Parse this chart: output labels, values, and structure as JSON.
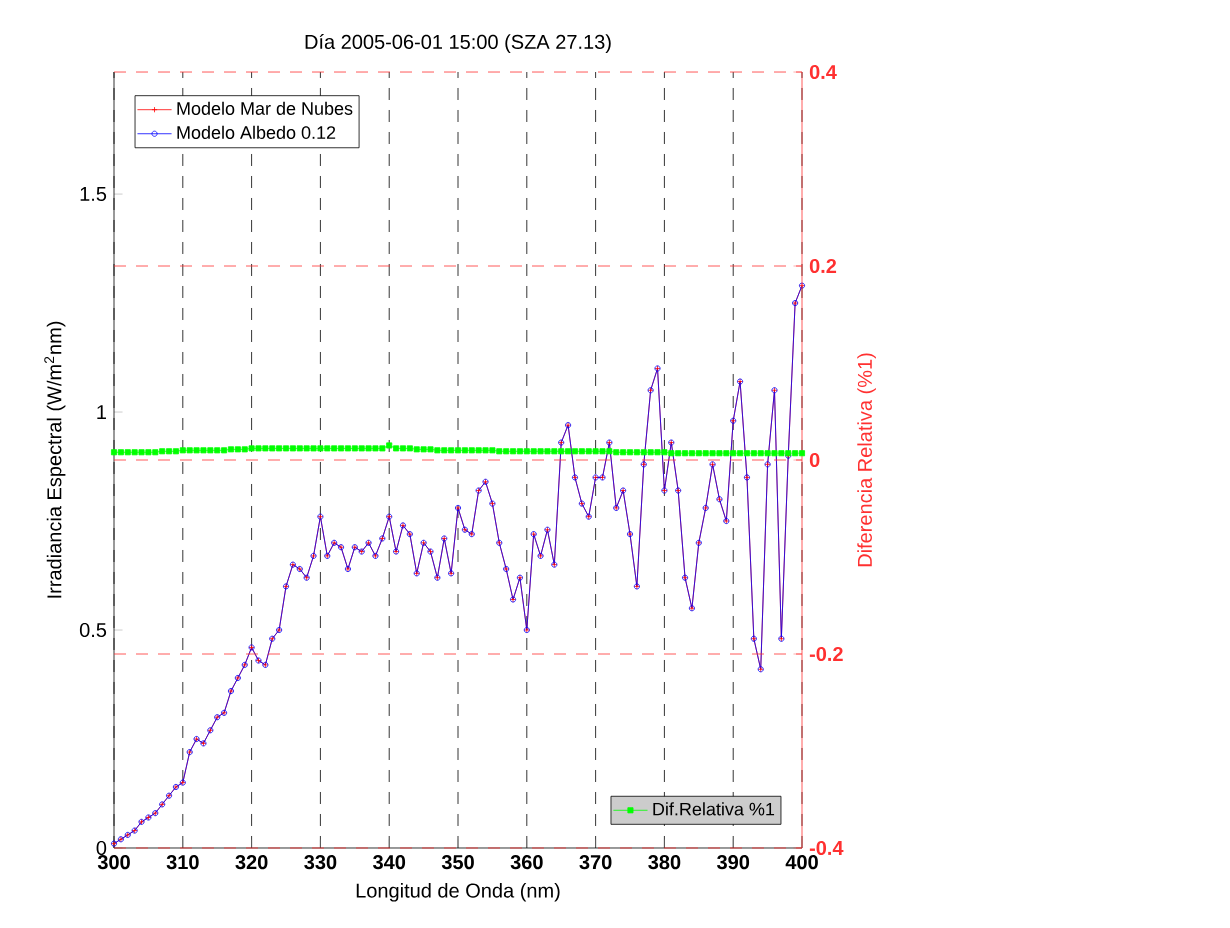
{
  "chart_data": {
    "type": "line",
    "title": "Día 2005-06-01 15:00 (SZA 27.13)",
    "xlabel": "Longitud de Onda (nm)",
    "ylabel": "Irradiancia Espectral (W/m$^{2}$nm)",
    "y2label": "Diferencia Relativa (%1)",
    "x": [
      300,
      301,
      302,
      303,
      304,
      305,
      306,
      307,
      308,
      309,
      310,
      311,
      312,
      313,
      314,
      315,
      316,
      317,
      318,
      319,
      320,
      321,
      322,
      323,
      324,
      325,
      326,
      327,
      328,
      329,
      330,
      331,
      332,
      333,
      334,
      335,
      336,
      337,
      338,
      339,
      340,
      341,
      342,
      343,
      344,
      345,
      346,
      347,
      348,
      349,
      350,
      351,
      352,
      353,
      354,
      355,
      356,
      357,
      358,
      359,
      360,
      361,
      362,
      363,
      364,
      365,
      366,
      367,
      368,
      369,
      370,
      371,
      372,
      373,
      374,
      375,
      376,
      377,
      378,
      379,
      380,
      381,
      382,
      383,
      384,
      385,
      386,
      387,
      388,
      389,
      390,
      391,
      392,
      393,
      394,
      395,
      396,
      397,
      398,
      399,
      400
    ],
    "series": [
      {
        "name": "Modelo Mar de Nubes",
        "color": "#ff0000",
        "marker": "cross",
        "values": [
          0.01,
          0.02,
          0.03,
          0.04,
          0.06,
          0.07,
          0.08,
          0.1,
          0.12,
          0.14,
          0.15,
          0.22,
          0.25,
          0.24,
          0.27,
          0.3,
          0.31,
          0.36,
          0.39,
          0.42,
          0.46,
          0.43,
          0.42,
          0.48,
          0.5,
          0.6,
          0.65,
          0.64,
          0.62,
          0.67,
          0.76,
          0.67,
          0.7,
          0.69,
          0.64,
          0.69,
          0.68,
          0.7,
          0.67,
          0.71,
          0.76,
          0.68,
          0.74,
          0.72,
          0.63,
          0.7,
          0.68,
          0.62,
          0.71,
          0.63,
          0.78,
          0.73,
          0.72,
          0.82,
          0.84,
          0.79,
          0.7,
          0.64,
          0.57,
          0.62,
          0.5,
          0.72,
          0.67,
          0.73,
          0.65,
          0.93,
          0.97,
          0.85,
          0.79,
          0.76,
          0.85,
          0.85,
          0.93,
          0.78,
          0.82,
          0.72,
          0.6,
          0.88,
          1.05,
          1.1,
          0.82,
          0.93,
          0.82,
          0.62,
          0.55,
          0.7,
          0.78,
          0.88,
          0.8,
          0.75,
          0.98,
          1.07,
          0.85,
          0.48,
          0.41,
          0.88,
          1.05,
          0.48,
          0.9,
          1.25,
          1.29
        ]
      },
      {
        "name": "Modelo Albedo 0.12",
        "color": "#0000ff",
        "marker": "circle",
        "values": [
          0.01,
          0.02,
          0.03,
          0.04,
          0.06,
          0.07,
          0.08,
          0.1,
          0.12,
          0.14,
          0.15,
          0.22,
          0.25,
          0.24,
          0.27,
          0.3,
          0.31,
          0.36,
          0.39,
          0.42,
          0.46,
          0.43,
          0.42,
          0.48,
          0.5,
          0.6,
          0.65,
          0.64,
          0.62,
          0.67,
          0.76,
          0.67,
          0.7,
          0.69,
          0.64,
          0.69,
          0.68,
          0.7,
          0.67,
          0.71,
          0.76,
          0.68,
          0.74,
          0.72,
          0.63,
          0.7,
          0.68,
          0.62,
          0.71,
          0.63,
          0.78,
          0.73,
          0.72,
          0.82,
          0.84,
          0.79,
          0.7,
          0.64,
          0.57,
          0.62,
          0.5,
          0.72,
          0.67,
          0.73,
          0.65,
          0.93,
          0.97,
          0.85,
          0.79,
          0.76,
          0.85,
          0.85,
          0.93,
          0.78,
          0.82,
          0.72,
          0.6,
          0.88,
          1.05,
          1.1,
          0.82,
          0.93,
          0.82,
          0.62,
          0.55,
          0.7,
          0.78,
          0.88,
          0.8,
          0.75,
          0.98,
          1.07,
          0.85,
          0.48,
          0.41,
          0.88,
          1.05,
          0.48,
          0.9,
          1.25,
          1.29
        ]
      },
      {
        "name": "Dif.Relativa %1",
        "color": "#00ff00",
        "marker": "square",
        "axis": "y2",
        "values": [
          0.008,
          0.008,
          0.008,
          0.008,
          0.008,
          0.008,
          0.008,
          0.009,
          0.009,
          0.009,
          0.01,
          0.01,
          0.01,
          0.01,
          0.01,
          0.01,
          0.01,
          0.011,
          0.011,
          0.011,
          0.012,
          0.012,
          0.012,
          0.012,
          0.012,
          0.012,
          0.012,
          0.012,
          0.012,
          0.012,
          0.012,
          0.012,
          0.012,
          0.012,
          0.012,
          0.012,
          0.012,
          0.012,
          0.012,
          0.012,
          0.015,
          0.012,
          0.012,
          0.012,
          0.011,
          0.011,
          0.011,
          0.01,
          0.01,
          0.01,
          0.01,
          0.01,
          0.01,
          0.01,
          0.01,
          0.01,
          0.009,
          0.009,
          0.009,
          0.009,
          0.009,
          0.009,
          0.009,
          0.009,
          0.009,
          0.009,
          0.009,
          0.009,
          0.009,
          0.009,
          0.009,
          0.009,
          0.009,
          0.008,
          0.008,
          0.008,
          0.008,
          0.008,
          0.008,
          0.008,
          0.008,
          0.007,
          0.007,
          0.007,
          0.007,
          0.007,
          0.007,
          0.007,
          0.007,
          0.007,
          0.007,
          0.007,
          0.007,
          0.007,
          0.007,
          0.007,
          0.007,
          0.007,
          0.007,
          0.007,
          0.007
        ]
      }
    ],
    "xlim": [
      300,
      400
    ],
    "xticks": [
      300,
      310,
      320,
      330,
      340,
      350,
      360,
      370,
      380,
      390,
      400
    ],
    "ylim": [
      0,
      1.78
    ],
    "yticks": [
      0,
      0.5,
      1,
      1.5
    ],
    "y2lim": [
      -0.4,
      0.4
    ],
    "y2ticks": [
      -0.4,
      -0.2,
      0,
      0.2,
      0.4
    ],
    "grid": true,
    "legend": "top left",
    "line_style": "solid"
  }
}
